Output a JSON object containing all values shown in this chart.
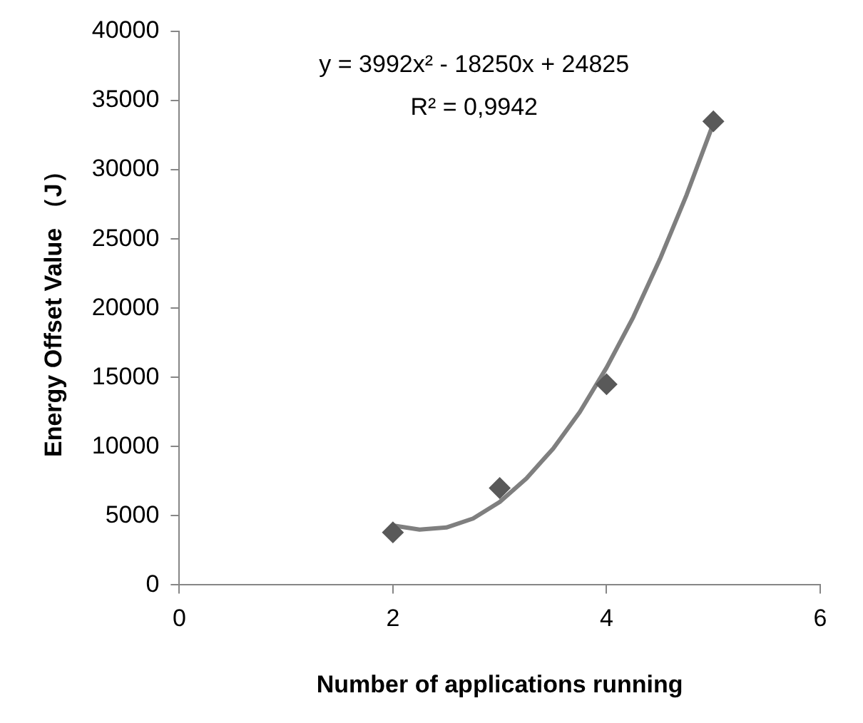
{
  "chart_data": {
    "type": "scatter",
    "xlabel": "Number of applications running",
    "ylabel": "Energy Offset Value （J）",
    "xlim": [
      0,
      6
    ],
    "xticks": [
      0,
      2,
      4,
      6
    ],
    "ylim": [
      0,
      40000
    ],
    "yticks": [
      0,
      5000,
      10000,
      15000,
      20000,
      25000,
      30000,
      35000,
      40000
    ],
    "grid": false,
    "legend": false,
    "marker": "diamond",
    "annotations": [
      "y = 3992x² - 18250x + 24825",
      "R² = 0,9942"
    ],
    "series": [
      {
        "type": "scatter",
        "color": "#595959",
        "x": [
          2,
          3,
          4,
          5
        ],
        "values": [
          3800,
          7000,
          14500,
          33500
        ]
      },
      {
        "type": "line",
        "color": "#7f7f7f",
        "marker": "none",
        "x": [
          2,
          2.25,
          2.5,
          2.75,
          3,
          3.25,
          3.5,
          3.75,
          4,
          4.25,
          4.5,
          4.75,
          5
        ],
        "values": [
          4300,
          4000,
          4150,
          4800,
          6000,
          7700,
          9850,
          12500,
          15700,
          19350,
          23550,
          28200,
          33350
        ]
      }
    ]
  }
}
